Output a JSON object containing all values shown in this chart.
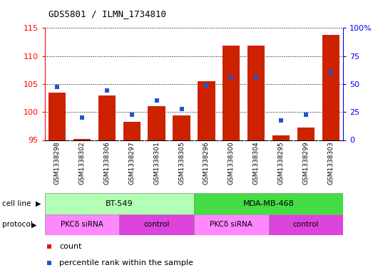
{
  "title": "GDS5801 / ILMN_1734810",
  "samples": [
    "GSM1338298",
    "GSM1338302",
    "GSM1338306",
    "GSM1338297",
    "GSM1338301",
    "GSM1338305",
    "GSM1338296",
    "GSM1338300",
    "GSM1338304",
    "GSM1338295",
    "GSM1338299",
    "GSM1338303"
  ],
  "bar_values": [
    103.5,
    95.2,
    103.0,
    98.2,
    101.0,
    99.4,
    105.5,
    111.8,
    111.8,
    95.8,
    97.2,
    113.8
  ],
  "blue_values": [
    47.5,
    20.0,
    44.0,
    22.5,
    35.0,
    27.5,
    48.5,
    56.0,
    56.0,
    17.5,
    22.5,
    60.0
  ],
  "bar_color": "#cc2200",
  "blue_color": "#2255cc",
  "ylim_left": [
    95,
    115
  ],
  "ylim_right": [
    0,
    100
  ],
  "yticks_left": [
    95,
    100,
    105,
    110,
    115
  ],
  "yticks_right": [
    0,
    25,
    50,
    75,
    100
  ],
  "yticklabels_right": [
    "0",
    "25",
    "50",
    "75",
    "100%"
  ],
  "cell_line_labels": [
    {
      "label": "BT-549",
      "start": 0,
      "end": 5,
      "color": "#b3ffb3"
    },
    {
      "label": "MDA-MB-468",
      "start": 6,
      "end": 11,
      "color": "#44dd44"
    }
  ],
  "protocol_labels": [
    {
      "label": "PKCδ siRNA",
      "start": 0,
      "end": 2,
      "color": "#ff88ff"
    },
    {
      "label": "control",
      "start": 3,
      "end": 5,
      "color": "#dd44dd"
    },
    {
      "label": "PKCδ siRNA",
      "start": 6,
      "end": 8,
      "color": "#ff88ff"
    },
    {
      "label": "control",
      "start": 9,
      "end": 11,
      "color": "#dd44dd"
    }
  ],
  "cell_line_row_label": "cell line",
  "protocol_row_label": "protocol",
  "legend_count_label": "count",
  "legend_pct_label": "percentile rank within the sample",
  "xtick_bg": "#cccccc",
  "plot_bg": "#ffffff",
  "fig_bg": "#ffffff"
}
